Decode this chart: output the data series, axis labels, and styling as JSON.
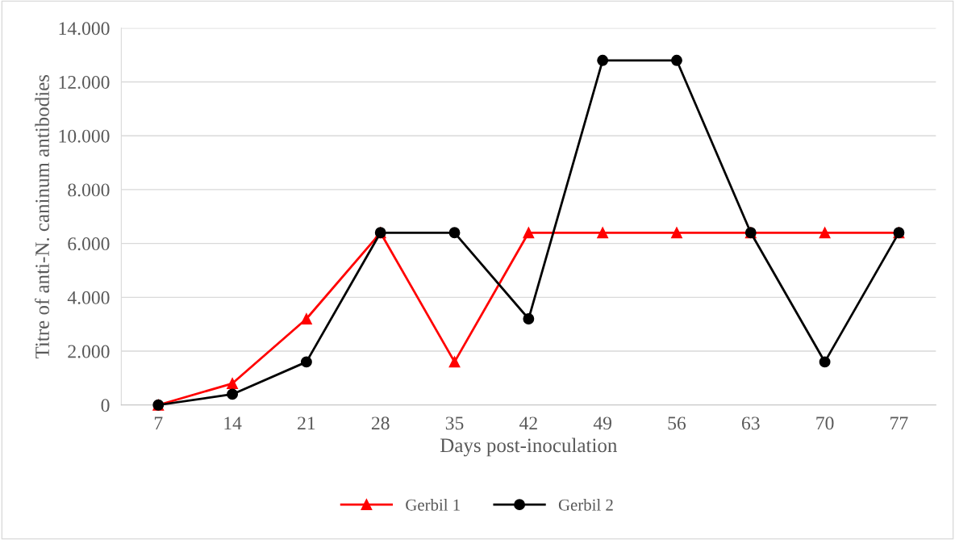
{
  "chart_data": {
    "type": "line",
    "xlabel": "Days post-inoculation",
    "ylabel": "Titre of anti-N. caninum antibodies",
    "categories": [
      "7",
      "14",
      "21",
      "28",
      "35",
      "42",
      "49",
      "56",
      "63",
      "70",
      "77"
    ],
    "series": [
      {
        "name": "Gerbil 1",
        "color": "#ff0000",
        "marker": "triangle",
        "values": [
          0,
          800,
          3200,
          6400,
          1600,
          6400,
          6400,
          6400,
          6400,
          6400,
          6400
        ]
      },
      {
        "name": "Gerbil 2",
        "color": "#000000",
        "marker": "circle",
        "values": [
          0,
          400,
          1600,
          6400,
          6400,
          3200,
          12800,
          12800,
          6400,
          1600,
          6400
        ]
      }
    ],
    "ylim": [
      0,
      14000
    ],
    "yticks": [
      0,
      {
        "value": 2000,
        "label": "2.000"
      },
      {
        "value": 4000,
        "label": "4.000"
      },
      {
        "value": 6000,
        "label": "6.000"
      },
      {
        "value": 8000,
        "label": "8.000"
      },
      {
        "value": 10000,
        "label": "10.000"
      },
      {
        "value": 12000,
        "label": "12.000"
      },
      {
        "value": 14000,
        "label": "14.000"
      }
    ],
    "grid": "y",
    "legend": "bottom",
    "line_style": "solid"
  }
}
